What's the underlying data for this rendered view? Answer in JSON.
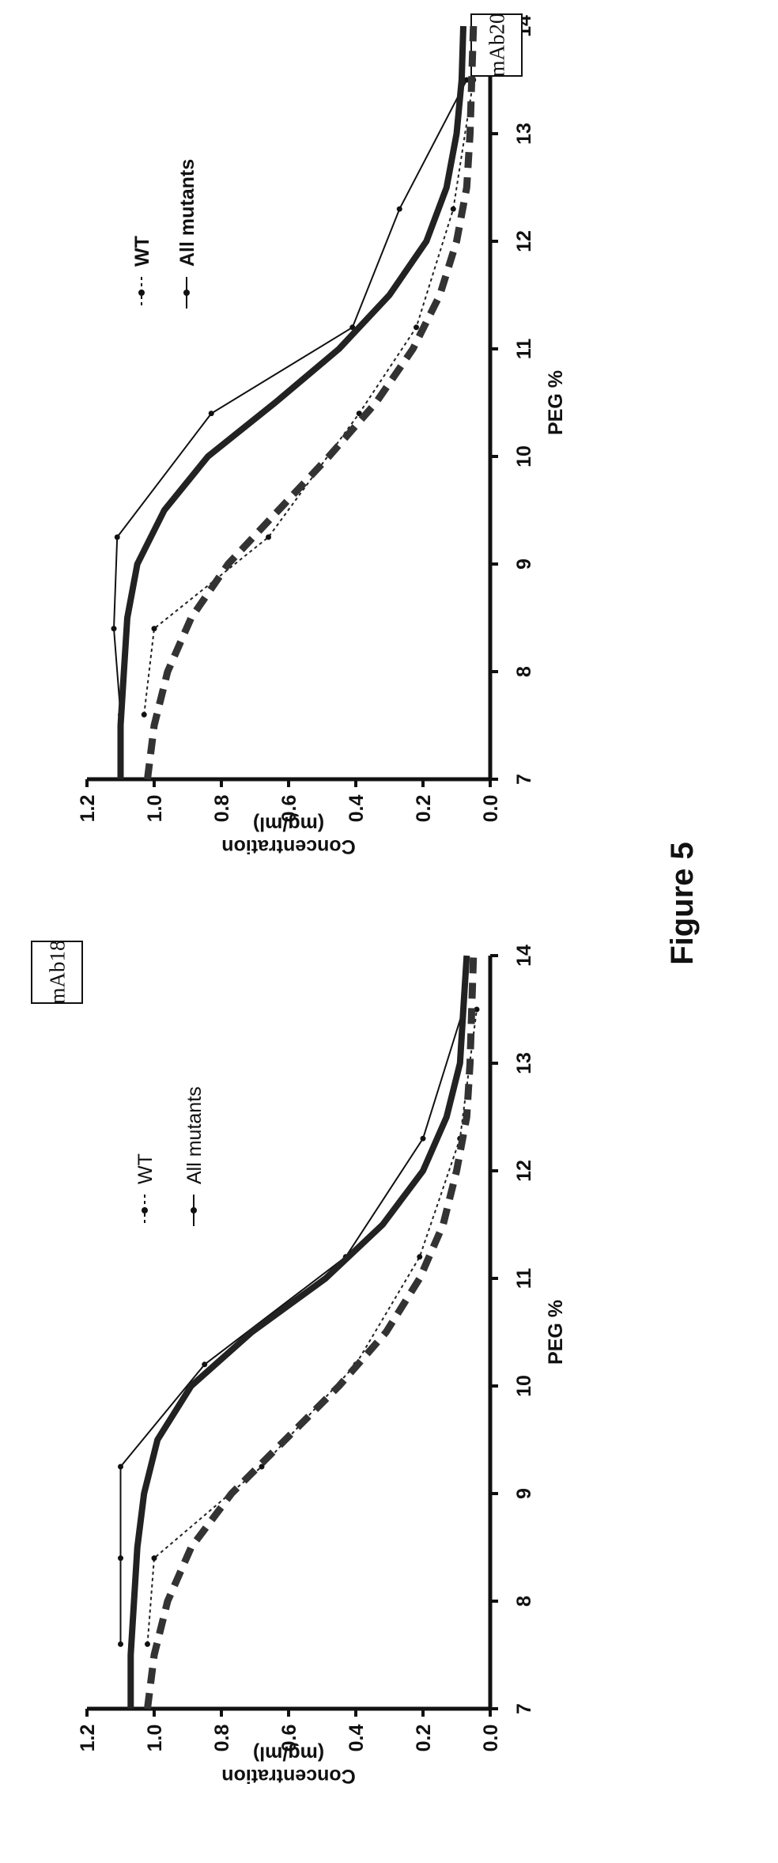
{
  "figure_caption": "Figure 5",
  "chart_data": [
    {
      "type": "line",
      "title": "mAb18",
      "xlabel": "PEG %",
      "ylabel": "Concentration (mg/ml)",
      "xlim": [
        7,
        14
      ],
      "ylim": [
        0,
        1.2
      ],
      "x_ticks": [
        "7",
        "8",
        "9",
        "10",
        "11",
        "12",
        "13",
        "14"
      ],
      "y_ticks": [
        "0.0",
        "0.2",
        "0.4",
        "0.6",
        "0.8",
        "1.0",
        "1.2"
      ],
      "legend": {
        "placement": "top-center",
        "entries": [
          "WT",
          "All mutants"
        ]
      },
      "series": [
        {
          "name": "WT",
          "style": "dotted-markers",
          "x": [
            7.6,
            8.4,
            9.25,
            10.2,
            11.2,
            12.3,
            13.5
          ],
          "y": [
            1.02,
            1.0,
            0.68,
            0.4,
            0.21,
            0.09,
            0.04
          ]
        },
        {
          "name": "All mutants",
          "style": "solid-markers",
          "x": [
            7.6,
            8.4,
            9.25,
            10.2,
            11.2,
            12.3,
            13.5
          ],
          "y": [
            1.1,
            1.1,
            1.1,
            0.85,
            0.43,
            0.2,
            0.08
          ]
        },
        {
          "name": "",
          "style": "thick-dashed-fit",
          "x": [
            7.0,
            7.5,
            8.0,
            8.5,
            9.0,
            9.5,
            10.0,
            10.5,
            11.0,
            11.5,
            12.0,
            12.5,
            13.0,
            13.5,
            14.0
          ],
          "y": [
            1.02,
            1.0,
            0.96,
            0.89,
            0.77,
            0.61,
            0.45,
            0.31,
            0.21,
            0.14,
            0.1,
            0.07,
            0.06,
            0.055,
            0.05
          ]
        },
        {
          "name": "",
          "style": "thick-solid-fit",
          "x": [
            7.0,
            7.5,
            8.0,
            8.5,
            9.0,
            9.5,
            10.0,
            10.5,
            11.0,
            11.5,
            12.0,
            12.5,
            13.0,
            13.5,
            14.0
          ],
          "y": [
            1.07,
            1.07,
            1.06,
            1.05,
            1.03,
            0.99,
            0.89,
            0.71,
            0.49,
            0.32,
            0.2,
            0.13,
            0.09,
            0.08,
            0.07
          ]
        }
      ]
    },
    {
      "type": "line",
      "title": "mAb20",
      "xlabel": "PEG %",
      "ylabel": "Concentration (mg/ml)",
      "xlim": [
        7,
        14
      ],
      "ylim": [
        0,
        1.2
      ],
      "x_ticks": [
        "7",
        "8",
        "9",
        "10",
        "11",
        "12",
        "13",
        "14"
      ],
      "y_ticks": [
        "0.0",
        "0.2",
        "0.4",
        "0.6",
        "0.8",
        "1.0",
        "1.2"
      ],
      "legend": {
        "placement": "top-right",
        "entries": [
          "WT",
          "All mutants"
        ]
      },
      "series": [
        {
          "name": "WT",
          "style": "dotted-markers",
          "x": [
            7.6,
            8.4,
            9.25,
            10.4,
            11.2,
            12.3,
            13.5
          ],
          "y": [
            1.03,
            1.0,
            0.66,
            0.39,
            0.22,
            0.11,
            0.05
          ]
        },
        {
          "name": "All mutants",
          "style": "solid-markers",
          "x": [
            7.6,
            8.4,
            9.25,
            10.4,
            11.2,
            12.3,
            13.5
          ],
          "y": [
            1.1,
            1.12,
            1.11,
            0.83,
            0.41,
            0.27,
            0.07
          ]
        },
        {
          "name": "",
          "style": "thick-dashed-fit",
          "x": [
            7.0,
            7.5,
            8.0,
            8.5,
            9.0,
            9.5,
            10.0,
            10.5,
            11.0,
            11.5,
            12.0,
            12.5,
            13.0,
            13.5,
            14.0
          ],
          "y": [
            1.02,
            1.0,
            0.96,
            0.89,
            0.78,
            0.63,
            0.48,
            0.34,
            0.23,
            0.15,
            0.1,
            0.07,
            0.06,
            0.055,
            0.05
          ]
        },
        {
          "name": "",
          "style": "thick-solid-fit",
          "x": [
            7.0,
            7.5,
            8.0,
            8.5,
            9.0,
            9.5,
            10.0,
            10.5,
            11.0,
            11.5,
            12.0,
            12.5,
            13.0,
            13.5,
            14.0
          ],
          "y": [
            1.1,
            1.1,
            1.09,
            1.08,
            1.05,
            0.97,
            0.84,
            0.64,
            0.45,
            0.3,
            0.19,
            0.13,
            0.1,
            0.085,
            0.08
          ]
        }
      ]
    }
  ]
}
